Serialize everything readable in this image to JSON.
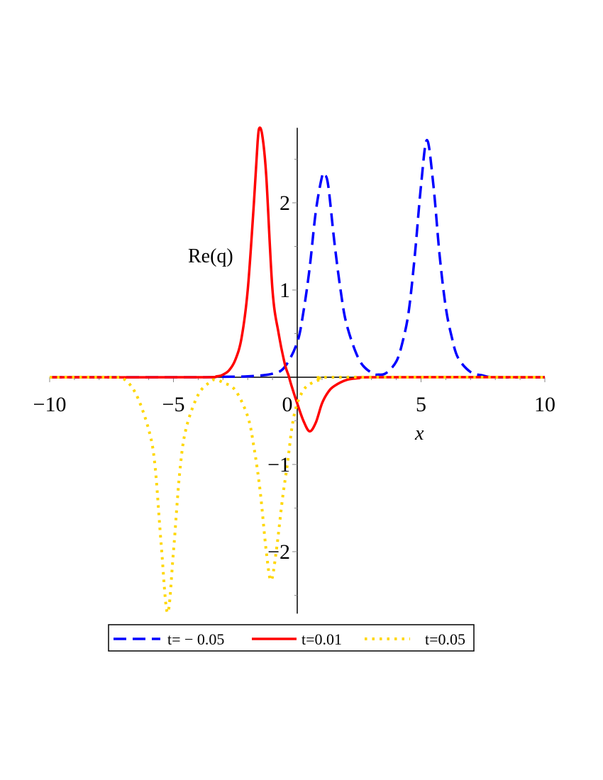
{
  "chart_data": {
    "type": "line",
    "title": "",
    "xlabel": "x",
    "ylabel": "Re(q)",
    "xlim": [
      -10,
      10
    ],
    "ylim": [
      -2.71,
      2.86
    ],
    "x_ticks": [
      -10,
      -5,
      0,
      5,
      10
    ],
    "x_tick_labels": [
      "-10",
      "-5",
      "0",
      "5",
      "10"
    ],
    "y_ticks": [
      -2,
      -1,
      1,
      2
    ],
    "y_tick_labels": [
      "-2",
      "-1",
      "1",
      "2"
    ],
    "grid": false,
    "legend_placement": "bottom",
    "series": [
      {
        "name": "t= − 0.05",
        "color": "#0000ff",
        "style": "dashed",
        "x": [
          -10,
          -4,
          -3,
          -2,
          -1,
          -0.5,
          0,
          0.25,
          0.5,
          0.75,
          1.0,
          1.1,
          1.25,
          1.5,
          1.75,
          2.0,
          2.5,
          3.0,
          3.3,
          3.6,
          4.0,
          4.25,
          4.5,
          4.75,
          5.0,
          5.24,
          5.5,
          5.75,
          6.0,
          6.25,
          6.5,
          7.0,
          7.5,
          8,
          10
        ],
        "y": [
          0,
          0,
          0.005,
          0.01,
          0.04,
          0.12,
          0.4,
          0.75,
          1.25,
          1.9,
          2.3,
          2.32,
          2.2,
          1.55,
          1.0,
          0.6,
          0.2,
          0.05,
          0.03,
          0.05,
          0.18,
          0.4,
          0.75,
          1.4,
          2.2,
          2.72,
          2.2,
          1.4,
          0.8,
          0.45,
          0.22,
          0.06,
          0.02,
          0,
          0
        ]
      },
      {
        "name": "t=0.01",
        "color": "#ff0000",
        "style": "solid",
        "x": [
          -10,
          -4,
          -3.25,
          -3,
          -2.75,
          -2.5,
          -2.25,
          -2,
          -1.75,
          -1.6,
          -1.52,
          -1.4,
          -1.25,
          -1.0,
          -0.75,
          -0.5,
          -0.35,
          -0.25,
          0,
          0.25,
          0.5,
          0.75,
          1.0,
          1.25,
          1.5,
          2.0,
          2.5,
          3,
          10
        ],
        "y": [
          0,
          0,
          0.01,
          0.03,
          0.08,
          0.2,
          0.45,
          1.0,
          2.0,
          2.7,
          2.86,
          2.75,
          2.3,
          1.0,
          0.5,
          0.15,
          0.02,
          -0.08,
          -0.3,
          -0.5,
          -0.62,
          -0.52,
          -0.3,
          -0.17,
          -0.1,
          -0.03,
          -0.01,
          0,
          0
        ]
      },
      {
        "name": "t=0.05",
        "color": "#ffd700",
        "style": "dotted",
        "x": [
          -10,
          -7.5,
          -7,
          -6.5,
          -6,
          -5.75,
          -5.5,
          -5.24,
          -5,
          -4.75,
          -4.5,
          -4,
          -3.5,
          -3.3,
          -3,
          -2.5,
          -2,
          -1.75,
          -1.5,
          -1.25,
          -1.06,
          -0.85,
          -0.6,
          -0.4,
          -0.2,
          0,
          0.25,
          0.5,
          1.0,
          1.5,
          10
        ],
        "y": [
          0,
          0,
          -0.02,
          -0.2,
          -0.6,
          -1.0,
          -1.9,
          -2.7,
          -2.0,
          -1.1,
          -0.6,
          -0.2,
          -0.05,
          -0.03,
          -0.06,
          -0.15,
          -0.45,
          -0.8,
          -1.3,
          -2.0,
          -2.33,
          -2.0,
          -1.4,
          -1.0,
          -0.55,
          -0.3,
          -0.15,
          -0.08,
          -0.02,
          0,
          0
        ]
      }
    ]
  }
}
